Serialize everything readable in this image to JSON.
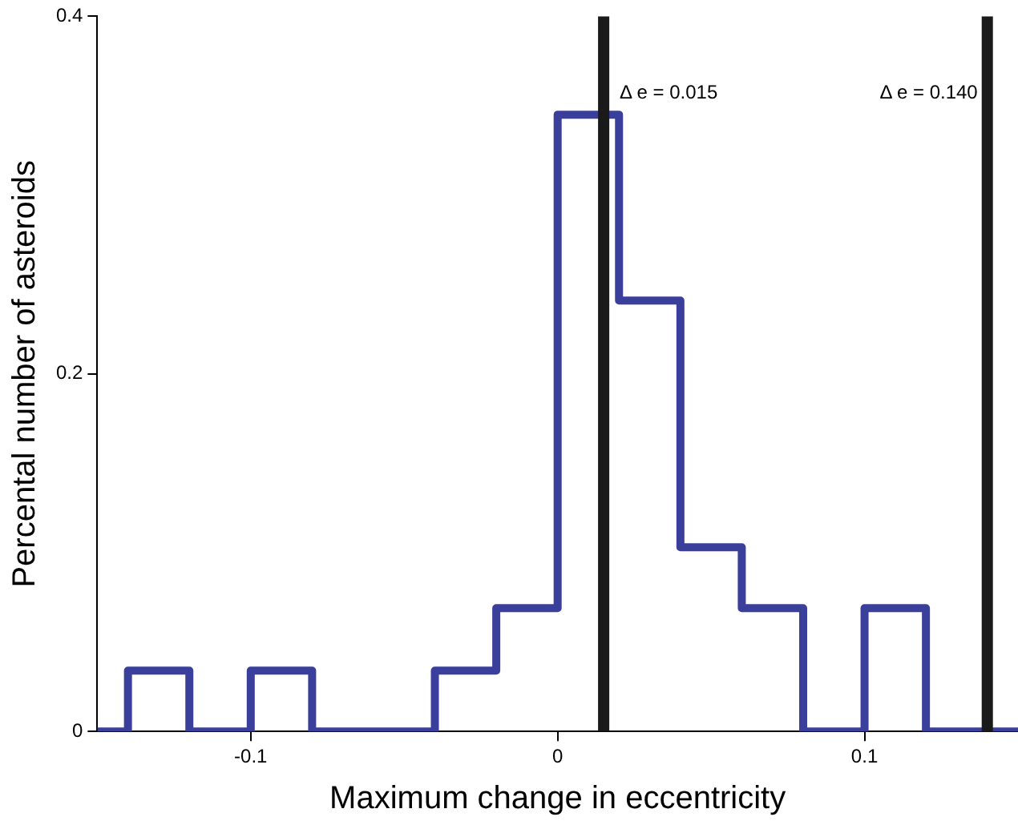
{
  "chart_data": {
    "type": "histogram",
    "xlabel": "Maximum change in eccentricity",
    "ylabel": "Percental number of asteroids",
    "bins": [
      -0.15,
      -0.14,
      -0.12,
      -0.1,
      -0.08,
      -0.06,
      -0.04,
      -0.02,
      0,
      0.02,
      0.04,
      0.06,
      0.08,
      0.1,
      0.12,
      0.14,
      0.15
    ],
    "values": [
      0,
      0.034,
      0,
      0.034,
      0,
      0,
      0.034,
      0.069,
      0.345,
      0.241,
      0.103,
      0.069,
      0,
      0.069,
      0,
      0
    ],
    "color": "#3a3f9c",
    "xlim": [
      -0.15,
      0.15
    ],
    "xticks": [
      -0.1,
      0,
      0.1
    ],
    "ylim": [
      0,
      0.4
    ],
    "yticks": [
      0,
      0.2,
      0.4
    ],
    "grid": false,
    "legend": false,
    "ref_lines": [
      {
        "axis": "x",
        "value": 0.015,
        "label": "Δ e = 0.015",
        "color": "#1a1a1a"
      },
      {
        "axis": "x",
        "value": 0.14,
        "label": "Δ e = 0.140",
        "color": "#1a1a1a"
      }
    ]
  }
}
